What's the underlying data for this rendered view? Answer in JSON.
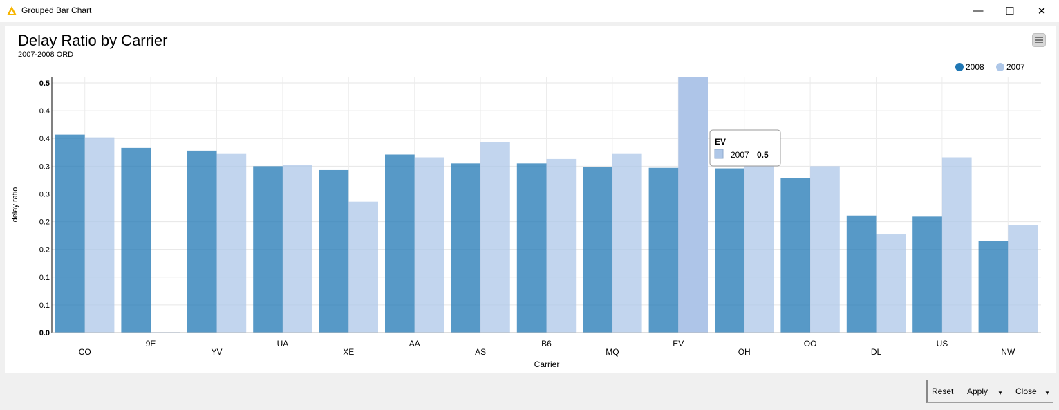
{
  "window": {
    "title": "Grouped Bar Chart",
    "minimize_glyph": "—",
    "maximize_glyph": "☐",
    "close_glyph": "✕"
  },
  "buttons": {
    "reset": "Reset",
    "apply": "Apply",
    "close": "Close"
  },
  "colors": {
    "series_2008": "#1f77b4",
    "series_2007": "#aec7e8",
    "highlight_2007": "#aec5e8"
  },
  "chart_data": {
    "type": "bar",
    "title": "Delay Ratio by Carrier",
    "subtitle": "2007-2008 ORD",
    "xlabel": "Carrier",
    "ylabel": "delay ratio",
    "ylim": [
      0,
      0.46
    ],
    "y_ticks": [
      0,
      0.05,
      0.1,
      0.15,
      0.2,
      0.25,
      0.3,
      0.35,
      0.4,
      0.45
    ],
    "y_tick_labels": [
      "0.0",
      "0.1",
      "0.1",
      "0.2",
      "0.2",
      "0.3",
      "0.3",
      "0.4",
      "0.4",
      "0.5"
    ],
    "grid": true,
    "legend_position": "top-right",
    "categories": [
      "CO",
      "9E",
      "YV",
      "UA",
      "XE",
      "AA",
      "AS",
      "B6",
      "MQ",
      "EV",
      "OH",
      "OO",
      "DL",
      "US",
      "NW"
    ],
    "series": [
      {
        "name": "2008",
        "values": [
          0.357,
          0.333,
          0.328,
          0.3,
          0.293,
          0.321,
          0.305,
          0.305,
          0.298,
          0.297,
          0.296,
          0.279,
          0.211,
          0.209,
          0.165
        ]
      },
      {
        "name": "2007",
        "values": [
          0.352,
          0.001,
          0.322,
          0.302,
          0.236,
          0.316,
          0.344,
          0.313,
          0.322,
          0.46,
          0.305,
          0.3,
          0.177,
          0.316,
          0.194
        ]
      }
    ],
    "tooltip": {
      "category": "EV",
      "series": "2007",
      "value": "0.5"
    }
  }
}
